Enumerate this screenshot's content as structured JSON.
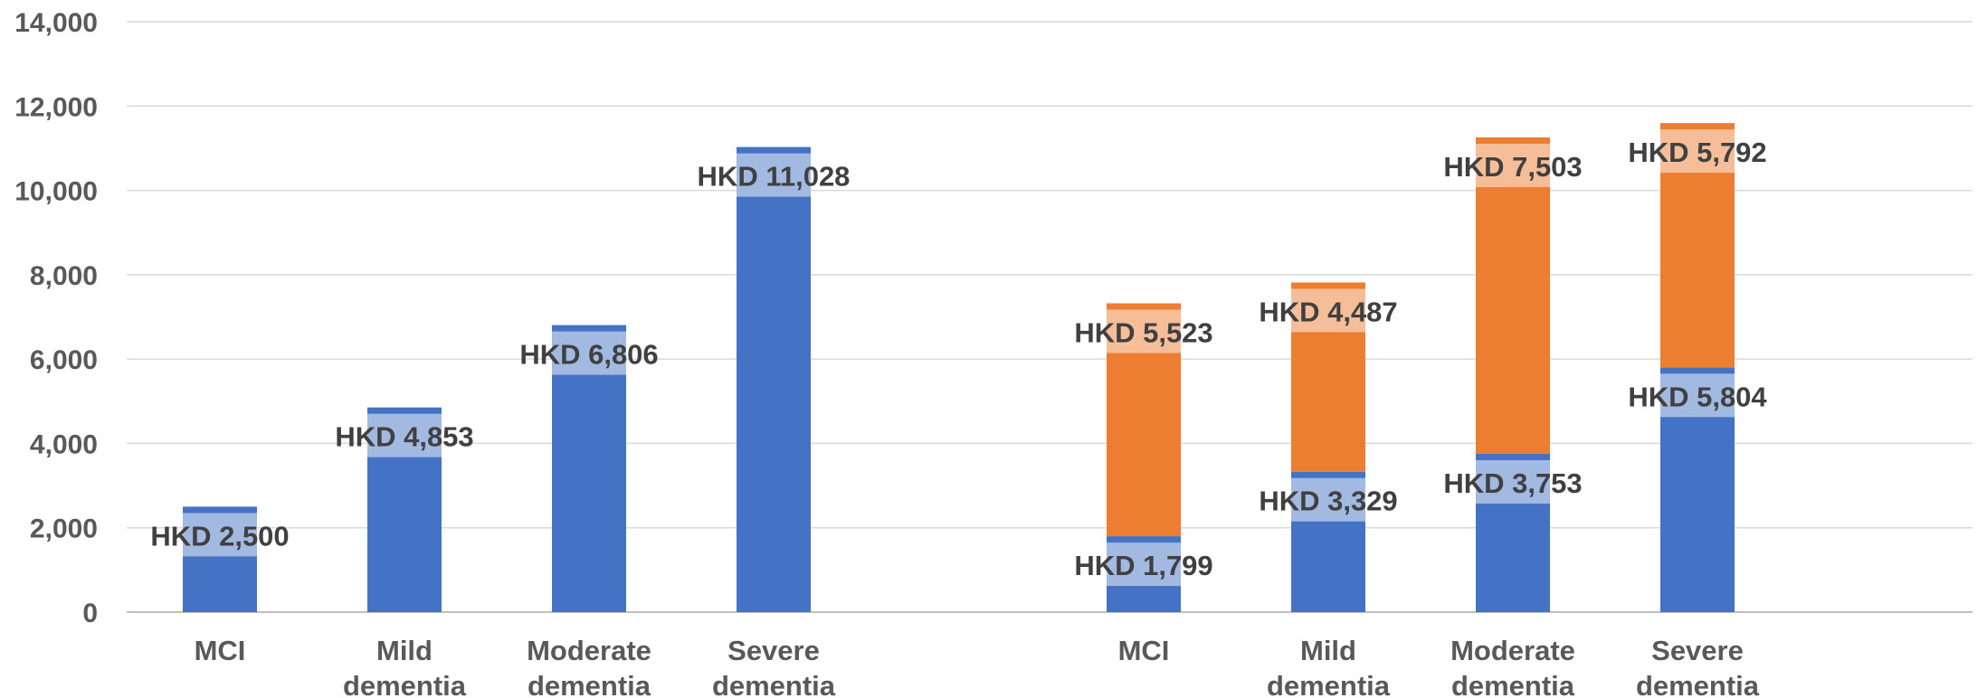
{
  "chart_data": {
    "type": "bar",
    "ylim": [
      0,
      14000
    ],
    "y_ticks": [
      "0",
      "2,000",
      "4,000",
      "6,000",
      "8,000",
      "10,000",
      "12,000",
      "14,000"
    ],
    "y_tick_values": [
      0,
      2000,
      4000,
      6000,
      8000,
      10000,
      12000,
      14000
    ],
    "grid": true,
    "legend": "none",
    "colors": {
      "blue": "#4472C4",
      "orange": "#ED7D31"
    },
    "groups": [
      {
        "stacked": false,
        "categories": [
          [
            "MCI"
          ],
          [
            "Mild",
            "dementia"
          ],
          [
            "Moderate",
            "dementia"
          ],
          [
            "Severe",
            "dementia"
          ]
        ],
        "series": [
          {
            "color": "#4472C4",
            "values": [
              2500,
              4853,
              6806,
              11028
            ],
            "labels": [
              "HKD 2,500",
              "HKD 4,853",
              "HKD 6,806",
              "HKD 11,028"
            ]
          }
        ]
      },
      {
        "stacked": true,
        "categories": [
          [
            "MCI"
          ],
          [
            "Mild",
            "dementia"
          ],
          [
            "Moderate",
            "dementia"
          ],
          [
            "Severe",
            "dementia"
          ]
        ],
        "series": [
          {
            "color": "#4472C4",
            "values": [
              1799,
              3329,
              3753,
              5804
            ],
            "labels": [
              "HKD 1,799",
              "HKD 3,329",
              "HKD 3,753",
              "HKD 5,804"
            ]
          },
          {
            "color": "#ED7D31",
            "values": [
              5523,
              4487,
              7503,
              5792
            ],
            "labels": [
              "HKD 5,523",
              "HKD 4,487",
              "HKD 7,503",
              "HKD 5,792"
            ]
          }
        ]
      }
    ]
  }
}
